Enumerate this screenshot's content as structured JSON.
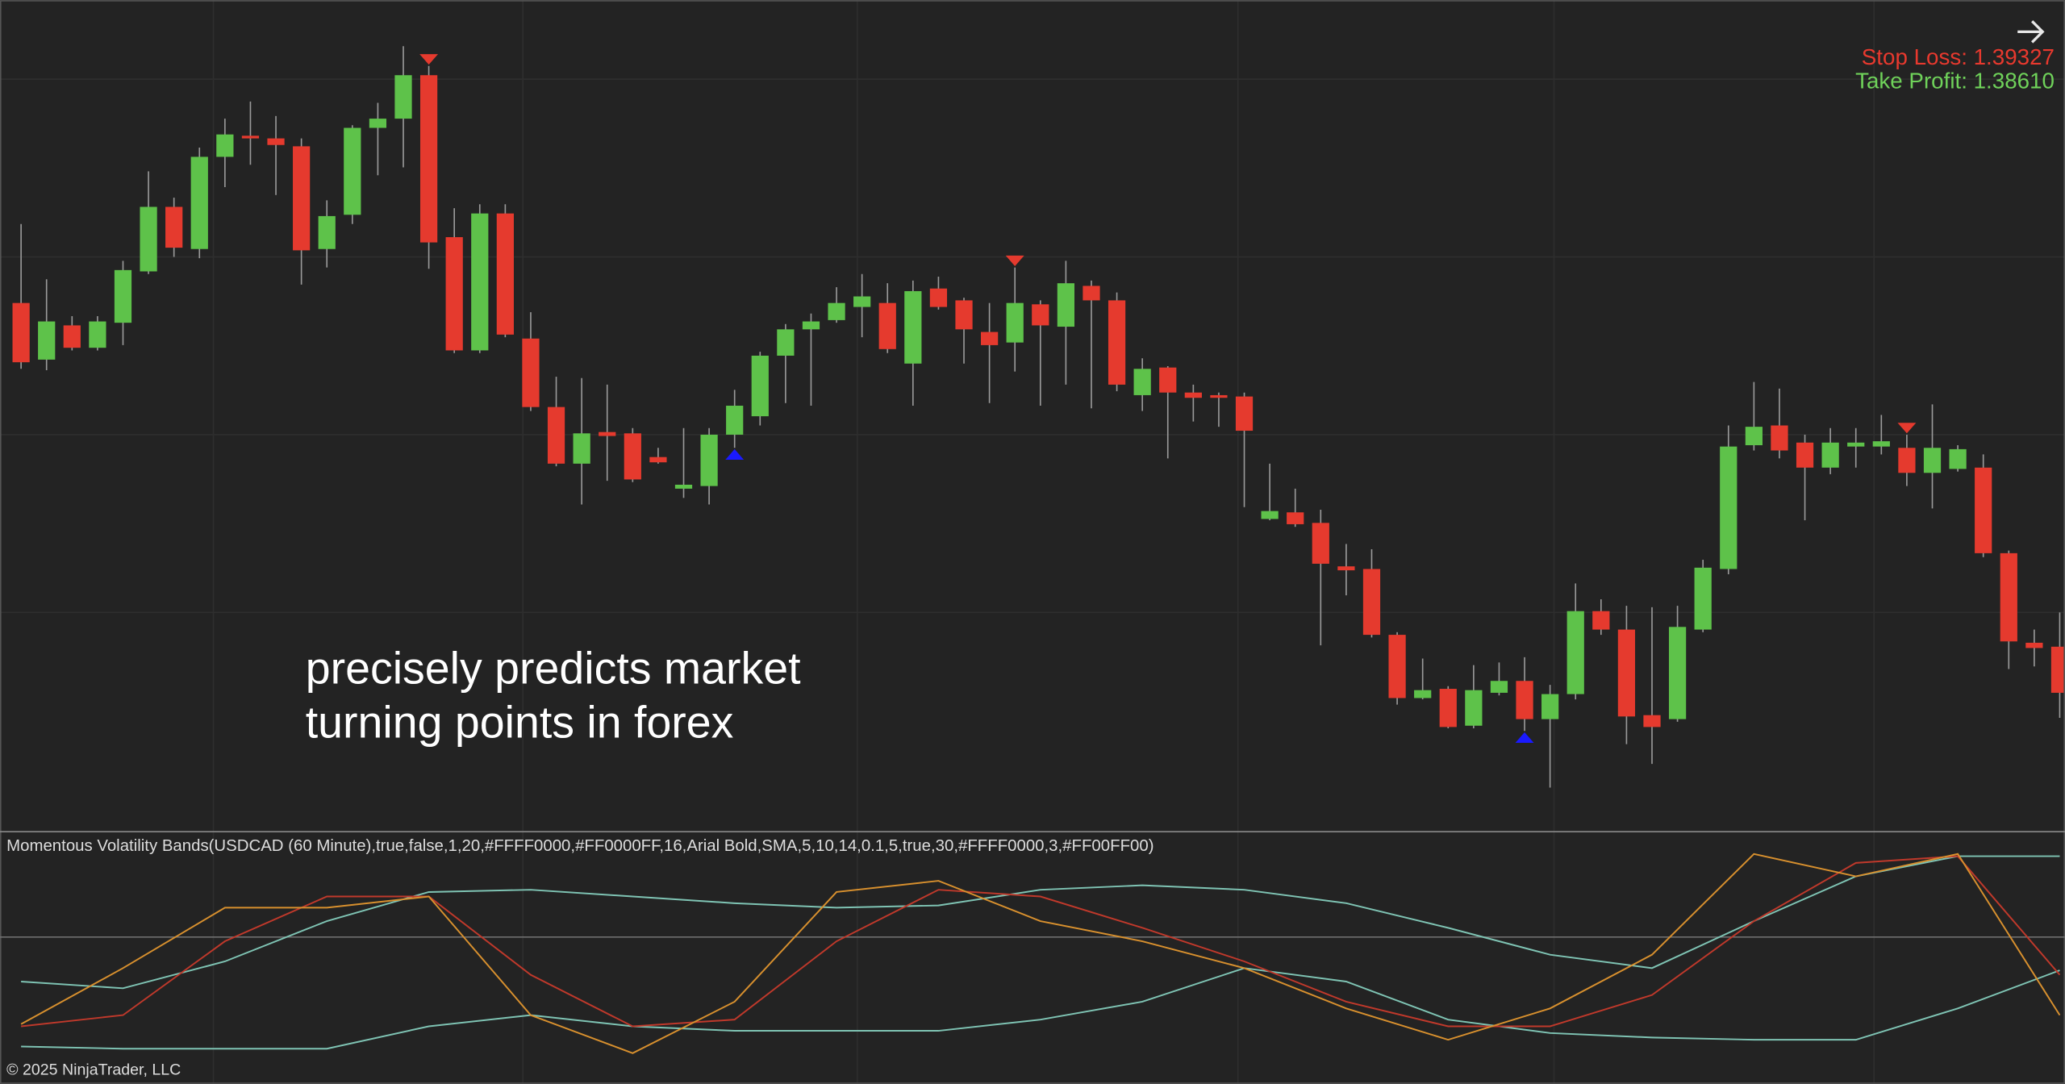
{
  "chart_data": [
    {
      "type": "candlestick",
      "ylim": [
        1.384,
        1.396
      ],
      "up_color": "#5ec24a",
      "down_color": "#e53a2e",
      "buy_color": "#1a1aff",
      "sell_color": "#e53a2e",
      "open": [
        1.3914,
        1.39054,
        1.39106,
        1.39072,
        1.3911,
        1.39188,
        1.39286,
        1.39222,
        1.39362,
        1.39394,
        1.3939,
        1.39378,
        1.39222,
        1.39274,
        1.39406,
        1.3942,
        1.39486,
        1.3924,
        1.39068,
        1.39276,
        1.39086,
        1.38982,
        1.38896,
        1.38944,
        1.38942,
        1.38906,
        1.38858,
        1.38862,
        1.3894,
        1.38968,
        1.3906,
        1.391,
        1.39114,
        1.39134,
        1.3914,
        1.39048,
        1.39162,
        1.39144,
        1.39096,
        1.3908,
        1.39138,
        1.39104,
        1.39166,
        1.39144,
        1.39,
        1.39042,
        1.39004,
        1.39,
        1.38998,
        1.38812,
        1.38822,
        1.38806,
        1.3874,
        1.38736,
        1.38636,
        1.3854,
        1.38554,
        1.38498,
        1.38548,
        1.38566,
        1.38508,
        1.38546,
        1.38672,
        1.38644,
        1.38514,
        1.38508,
        1.38644,
        1.38736,
        1.38924,
        1.38954,
        1.38928,
        1.3889,
        1.38922,
        1.38922,
        1.3892,
        1.38882,
        1.38888,
        1.3889,
        1.3876,
        1.38624,
        1.38618
      ],
      "high": [
        1.3926,
        1.39176,
        1.3912,
        1.3912,
        1.39204,
        1.3934,
        1.393,
        1.39376,
        1.3942,
        1.39446,
        1.39424,
        1.3939,
        1.39296,
        1.3941,
        1.39444,
        1.3953,
        1.395,
        1.39284,
        1.3929,
        1.3929,
        1.39126,
        1.39028,
        1.39026,
        1.39016,
        1.3895,
        1.3892,
        1.3895,
        1.3895,
        1.39008,
        1.39066,
        1.39108,
        1.39124,
        1.39164,
        1.39184,
        1.3917,
        1.39174,
        1.3918,
        1.39148,
        1.3914,
        1.39194,
        1.39144,
        1.39204,
        1.39174,
        1.39156,
        1.39056,
        1.39044,
        1.39016,
        1.39004,
        1.39004,
        1.38896,
        1.38858,
        1.38826,
        1.38774,
        1.38766,
        1.3864,
        1.386,
        1.38558,
        1.3859,
        1.38594,
        1.38602,
        1.3856,
        1.38714,
        1.3869,
        1.3868,
        1.38678,
        1.3868,
        1.3875,
        1.38954,
        1.3902,
        1.3901,
        1.3894,
        1.3895,
        1.3895,
        1.3897,
        1.3894,
        1.38986,
        1.38924,
        1.3891,
        1.38764,
        1.38644,
        1.3867
      ],
      "low": [
        1.3904,
        1.39038,
        1.39068,
        1.39068,
        1.39076,
        1.39184,
        1.3921,
        1.39208,
        1.39316,
        1.3935,
        1.39304,
        1.39168,
        1.39194,
        1.3926,
        1.39334,
        1.39346,
        1.39192,
        1.39064,
        1.39064,
        1.39088,
        1.38976,
        1.38892,
        1.38834,
        1.3887,
        1.38868,
        1.38896,
        1.38844,
        1.38834,
        1.3892,
        1.38954,
        1.38988,
        1.38984,
        1.3911,
        1.39088,
        1.39064,
        1.38984,
        1.3913,
        1.39048,
        1.38988,
        1.39036,
        1.38984,
        1.39016,
        1.3898,
        1.39006,
        1.38976,
        1.38904,
        1.3896,
        1.38952,
        1.3883,
        1.3881,
        1.388,
        1.3862,
        1.38696,
        1.38632,
        1.3853,
        1.38538,
        1.38494,
        1.38494,
        1.38544,
        1.3849,
        1.38404,
        1.38538,
        1.38636,
        1.3847,
        1.3844,
        1.38504,
        1.3864,
        1.38728,
        1.38916,
        1.38904,
        1.3881,
        1.3888,
        1.3889,
        1.3891,
        1.38862,
        1.38828,
        1.38884,
        1.38754,
        1.38584,
        1.38588,
        1.3851
      ],
      "close": [
        1.3905,
        1.39112,
        1.39072,
        1.39112,
        1.3919,
        1.39286,
        1.39224,
        1.39362,
        1.39396,
        1.3939,
        1.3938,
        1.3922,
        1.39272,
        1.39406,
        1.3942,
        1.39486,
        1.39232,
        1.39068,
        1.39276,
        1.39092,
        1.38982,
        1.38896,
        1.38942,
        1.38938,
        1.38872,
        1.38898,
        1.38864,
        1.3894,
        1.38984,
        1.3906,
        1.391,
        1.39112,
        1.3914,
        1.3915,
        1.3907,
        1.39158,
        1.39134,
        1.391,
        1.39076,
        1.3914,
        1.39106,
        1.3917,
        1.39144,
        1.39016,
        1.3904,
        1.39004,
        1.38996,
        1.38996,
        1.38946,
        1.38824,
        1.38804,
        1.38744,
        1.38734,
        1.38636,
        1.3854,
        1.38552,
        1.38496,
        1.38552,
        1.38566,
        1.38508,
        1.38546,
        1.38672,
        1.38644,
        1.38512,
        1.38496,
        1.38648,
        1.38738,
        1.38922,
        1.38952,
        1.38916,
        1.3889,
        1.38928,
        1.38928,
        1.3893,
        1.38882,
        1.3892,
        1.38918,
        1.3876,
        1.38626,
        1.38616,
        1.38548
      ],
      "sell_signals": [
        16,
        39,
        74
      ],
      "buy_signals": [
        28,
        59
      ],
      "stop_loss": "Stop Loss: 1.39327",
      "take_profit": "Take Profit: 1.38610",
      "caption": [
        "precisely predicts market",
        "turning points in forex"
      ]
    },
    {
      "type": "line",
      "title": "Momentous Volatility Bands(USDCAD (60 Minute),true,false,1,20,#FFFF0000,#FF0000FF,16,Arial Bold,SMA,5,10,14,0.1,5,true,30,#FFFF0000,3,#FF00FF00)",
      "xlim": [
        0,
        80
      ],
      "ylim": [
        0,
        100
      ],
      "x": [
        0,
        4,
        8,
        12,
        16,
        20,
        24,
        28,
        32,
        36,
        40,
        44,
        48,
        52,
        56,
        60,
        64,
        68,
        72,
        76,
        80
      ],
      "series": [
        {
          "color": "#7fc4b4",
          "values": [
            41,
            38,
            50,
            68,
            81,
            82,
            79,
            76,
            74,
            75,
            82,
            84,
            82,
            76,
            65,
            53,
            47,
            68,
            88,
            97,
            97
          ]
        },
        {
          "color": "#7fc4b4",
          "values": [
            12,
            11,
            11,
            11,
            21,
            26,
            21,
            19,
            19,
            19,
            24,
            32,
            47,
            41,
            24,
            18,
            16,
            15,
            15,
            29,
            46
          ]
        },
        {
          "color": "#c0392b",
          "values": [
            21,
            26,
            59,
            79,
            79,
            44,
            21,
            24,
            59,
            82,
            79,
            65,
            50,
            32,
            21,
            21,
            35,
            68,
            94,
            97,
            44
          ]
        },
        {
          "color": "#d8902e",
          "values": [
            22,
            47,
            74,
            74,
            79,
            26,
            9,
            32,
            81,
            86,
            68,
            59,
            47,
            29,
            15,
            29,
            53,
            98,
            88,
            98,
            26
          ]
        }
      ]
    }
  ],
  "footer": {
    "copyright": "© 2025 NinjaTrader, LLC"
  }
}
